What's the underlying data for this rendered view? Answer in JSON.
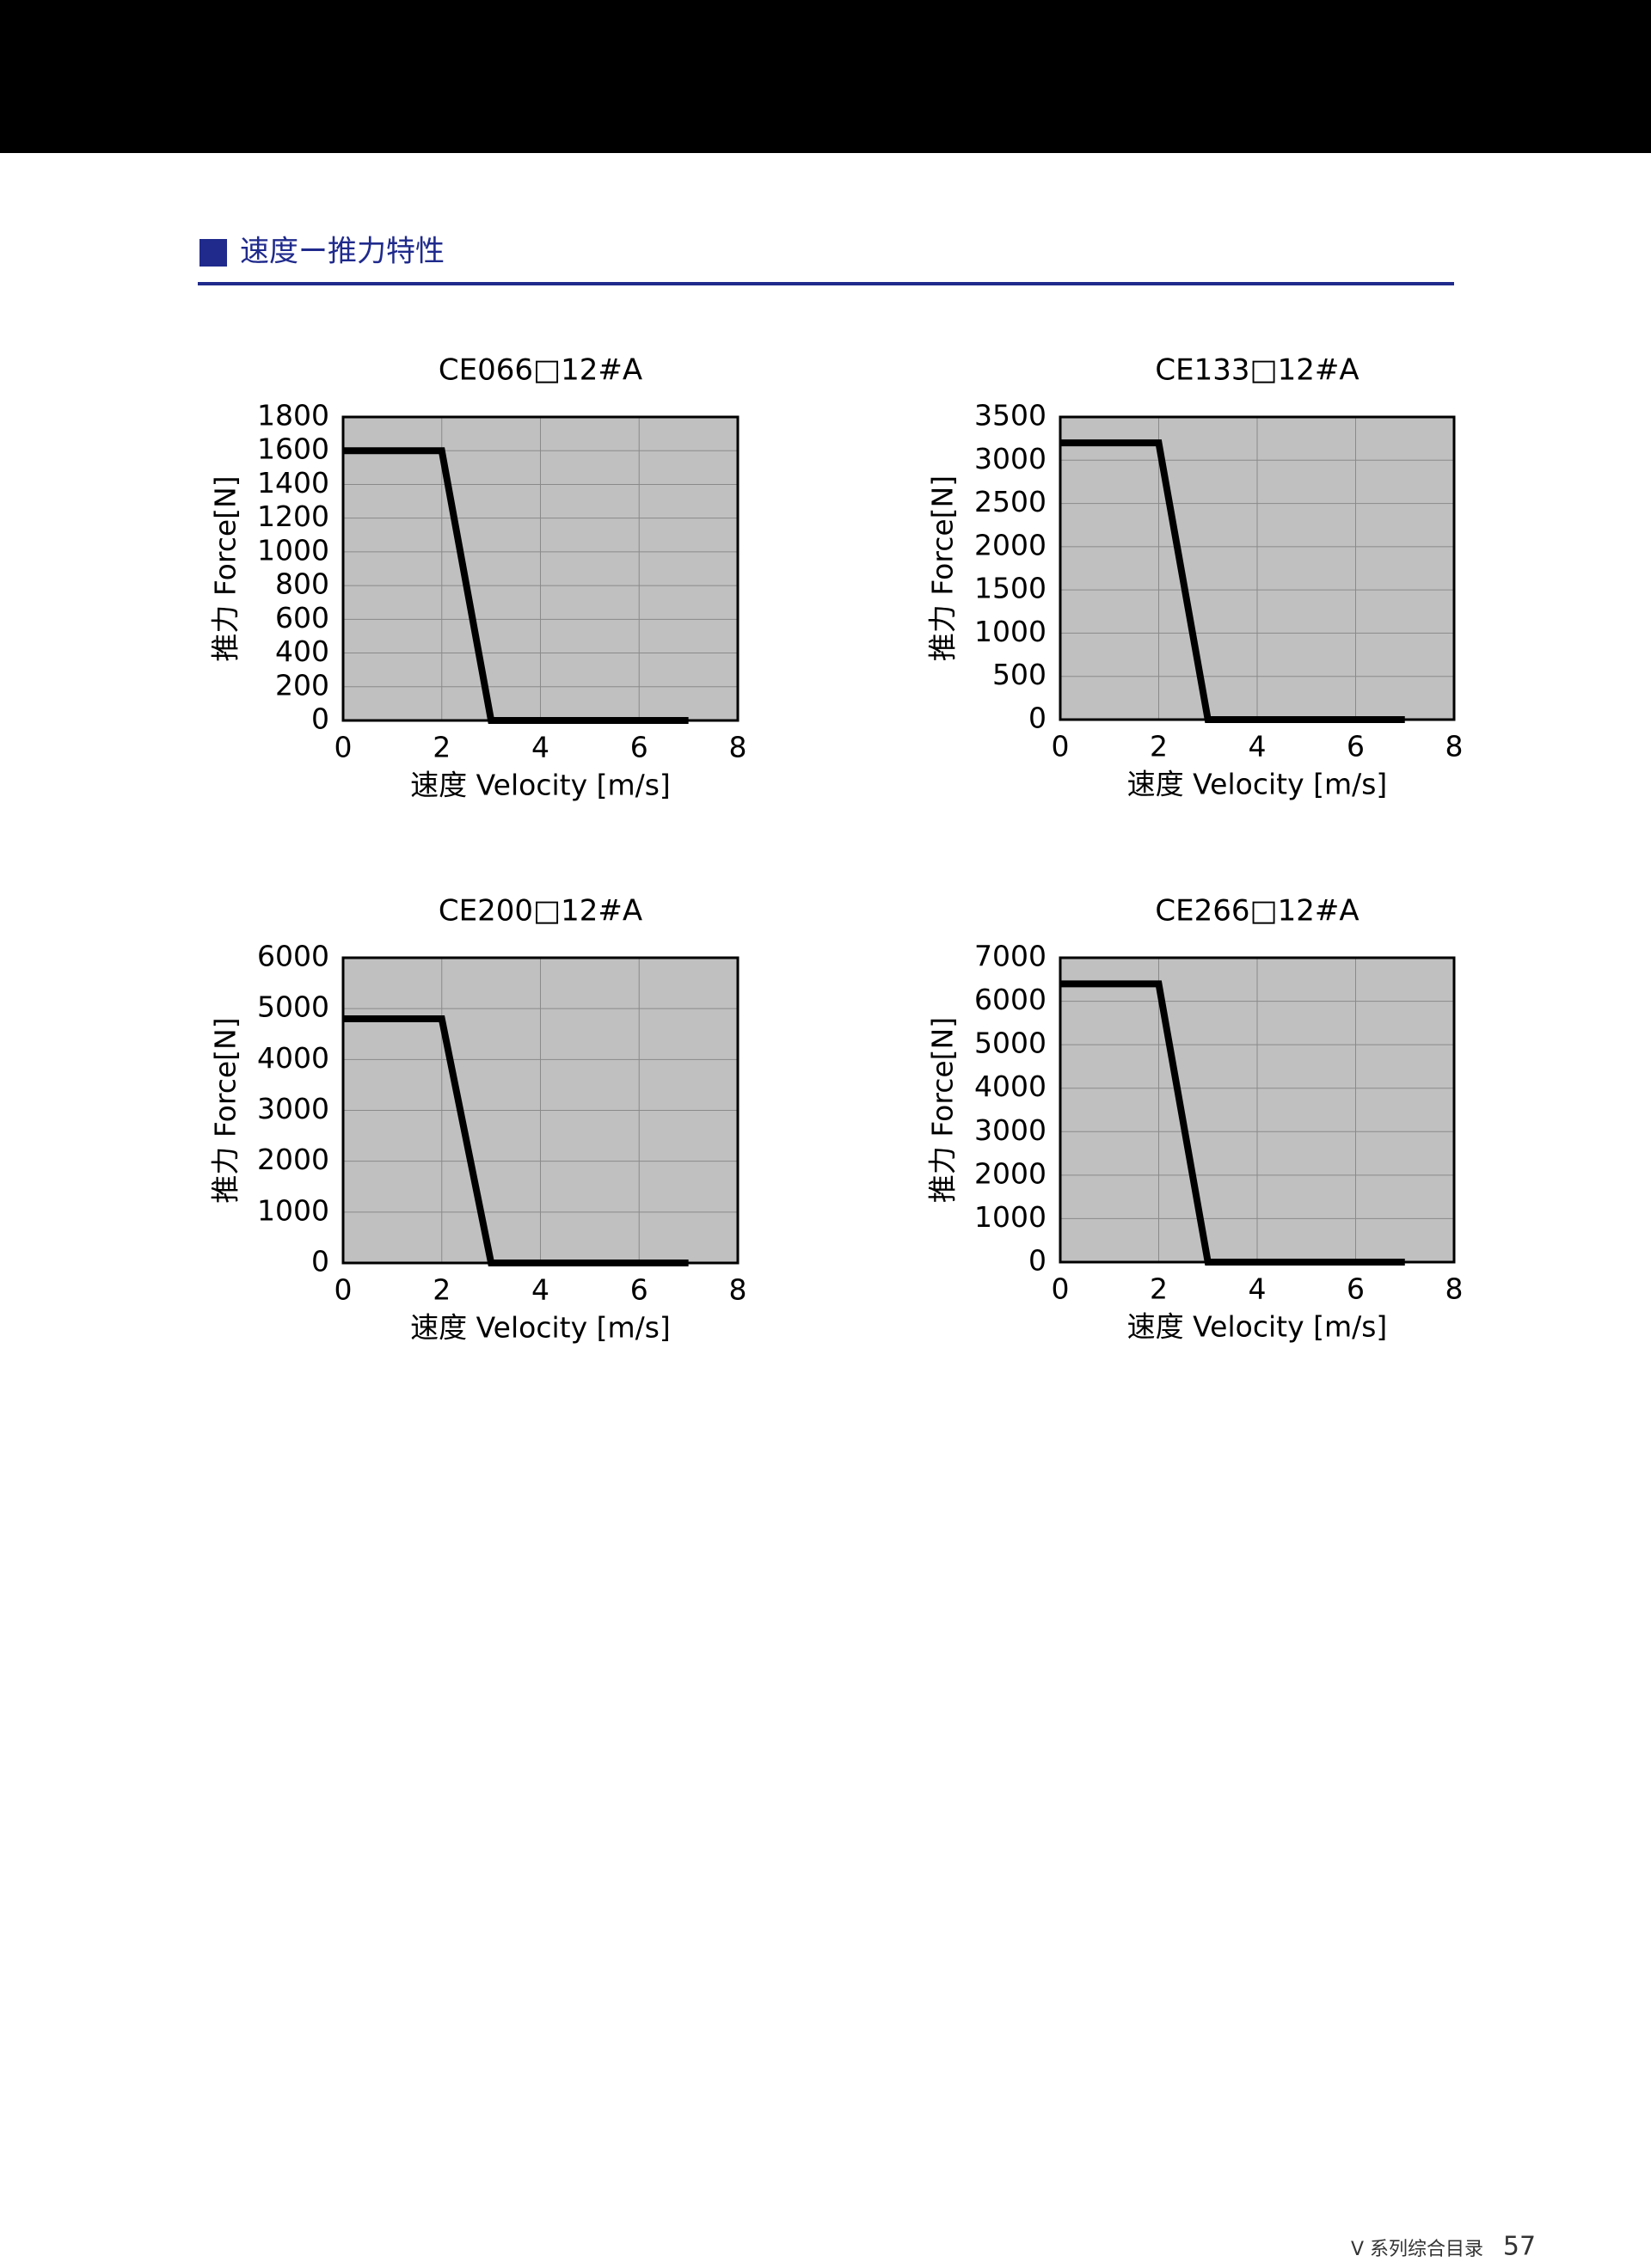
{
  "heading": "速度ー推力特性",
  "chart_data": [
    {
      "type": "line",
      "title": "CE066□12#A",
      "x_label": "速度 Velocity [m/s]",
      "y_label": "推力 Force[N]",
      "x": [
        0,
        2,
        3,
        7
      ],
      "values": [
        1600,
        1600,
        0,
        0
      ],
      "color": "#000000",
      "xlim": [
        0,
        8
      ],
      "xticks": [
        0,
        2,
        4,
        6,
        8
      ],
      "ylim": [
        0,
        1800
      ],
      "yticks": [
        0,
        200,
        400,
        600,
        800,
        1000,
        1200,
        1400,
        1600,
        1800
      ],
      "grid": true
    },
    {
      "type": "line",
      "title": "CE133□12#A",
      "x_label": "速度 Velocity [m/s]",
      "y_label": "推力 Force[N]",
      "x": [
        0,
        2,
        3,
        7
      ],
      "values": [
        3200,
        3200,
        0,
        0
      ],
      "color": "#000000",
      "xlim": [
        0,
        8
      ],
      "xticks": [
        0,
        2,
        4,
        6,
        8
      ],
      "ylim": [
        0,
        3500
      ],
      "yticks": [
        0,
        500,
        1000,
        1500,
        2000,
        2500,
        3000,
        3500
      ],
      "grid": true
    },
    {
      "type": "line",
      "title": "CE200□12#A",
      "x_label": "速度 Velocity [m/s]",
      "y_label": "推力 Force[N]",
      "x": [
        0,
        2,
        3,
        7
      ],
      "values": [
        4800,
        4800,
        0,
        0
      ],
      "color": "#000000",
      "xlim": [
        0,
        8
      ],
      "xticks": [
        0,
        2,
        4,
        6,
        8
      ],
      "ylim": [
        0,
        6000
      ],
      "yticks": [
        0,
        1000,
        2000,
        3000,
        4000,
        5000,
        6000
      ],
      "grid": true
    },
    {
      "type": "line",
      "title": "CE266□12#A",
      "x_label": "速度 Velocity [m/s]",
      "y_label": "推力 Force[N]",
      "x": [
        0,
        2,
        3,
        7
      ],
      "values": [
        6400,
        6400,
        0,
        0
      ],
      "color": "#000000",
      "xlim": [
        0,
        8
      ],
      "xticks": [
        0,
        2,
        4,
        6,
        8
      ],
      "ylim": [
        0,
        7000
      ],
      "yticks": [
        0,
        1000,
        2000,
        3000,
        4000,
        5000,
        6000,
        7000
      ],
      "grid": true
    }
  ],
  "footer": {
    "catalog": "V 系列综合目录",
    "page": "57"
  }
}
